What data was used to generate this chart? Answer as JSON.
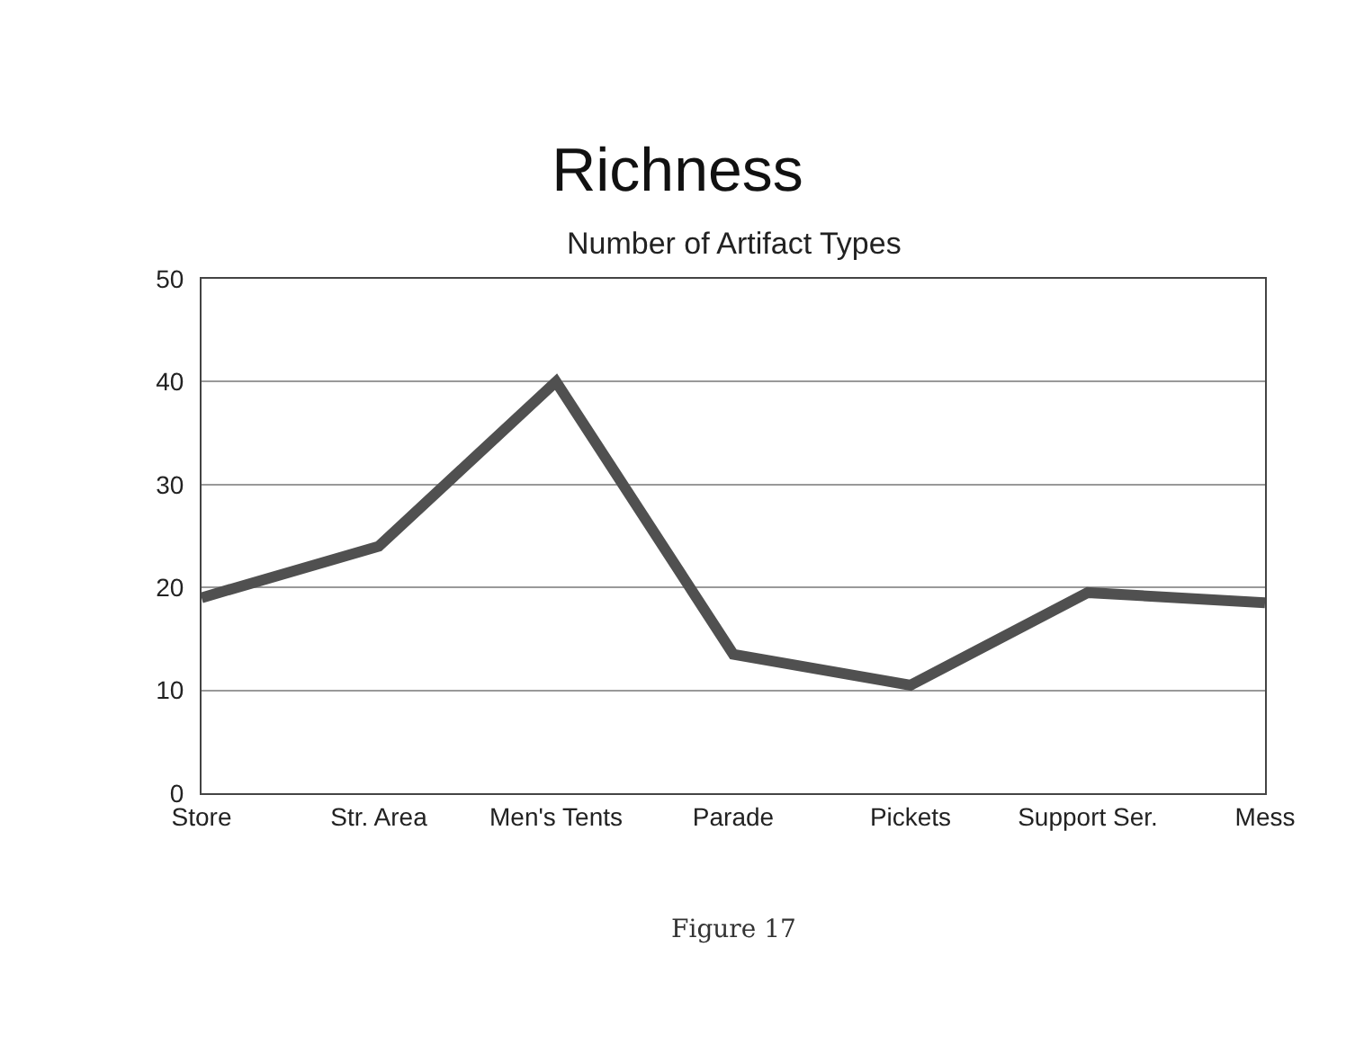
{
  "chart_data": {
    "type": "line",
    "title": "Richness",
    "subtitle": "Number of Artifact Types",
    "categories": [
      "Store",
      "Str. Area",
      "Men's Tents",
      "Parade",
      "Pickets",
      "Support Ser.",
      "Mess"
    ],
    "series": [
      {
        "color": "#505050",
        "values": [
          19,
          24,
          40,
          13.5,
          10.5,
          19.5,
          18.5
        ]
      }
    ],
    "ylim": [
      0,
      50
    ],
    "yticks": [
      0,
      10,
      20,
      30,
      40,
      50
    ],
    "grid": "y",
    "marker": "none",
    "line_style": "solid",
    "annotations": [
      "Figure 17"
    ]
  }
}
